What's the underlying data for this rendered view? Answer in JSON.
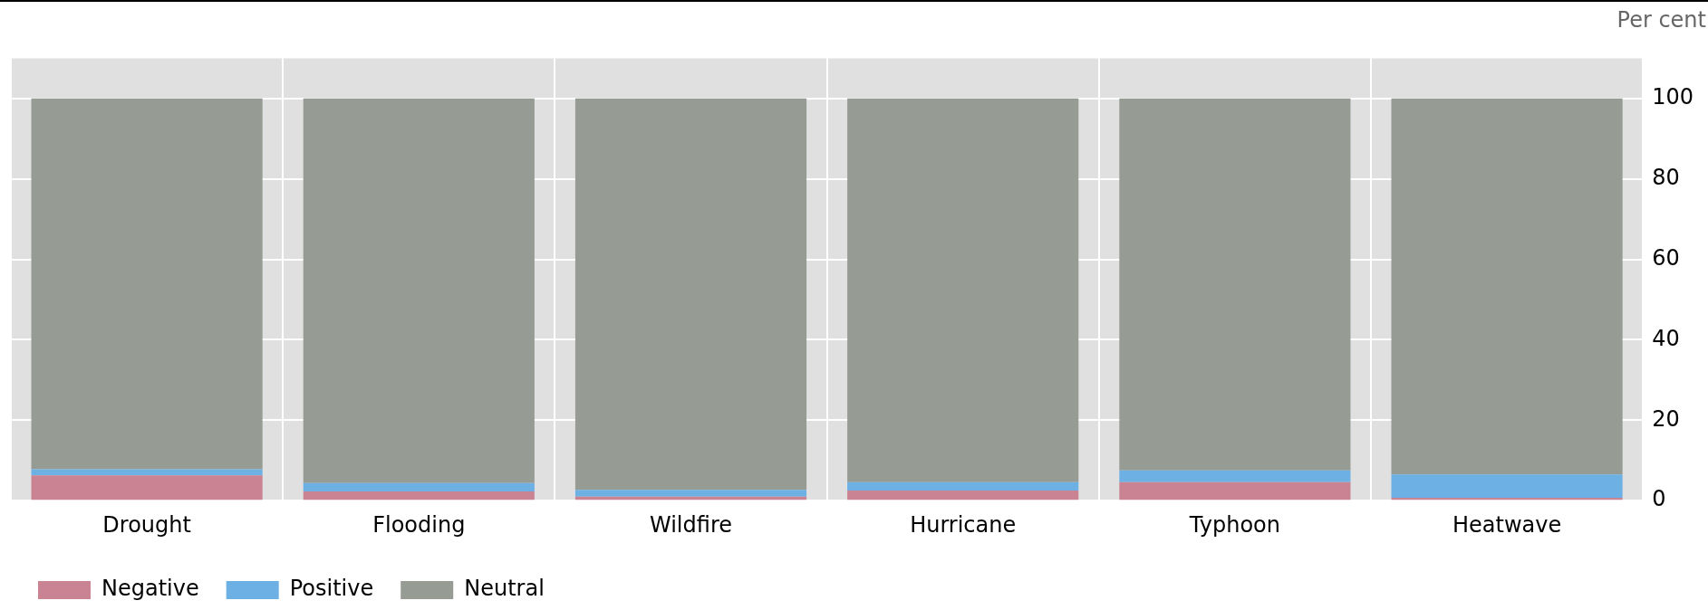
{
  "chart_data": {
    "type": "bar",
    "stacked": true,
    "ylabel": "Per cent",
    "categories": [
      "Drought",
      "Flooding",
      "Wildfire",
      "Hurricane",
      "Typhoon",
      "Heatwave"
    ],
    "series": [
      {
        "name": "Negative",
        "color": "#c98393",
        "values": [
          6.3,
          2.3,
          1.0,
          2.5,
          4.6,
          0.7
        ]
      },
      {
        "name": "Positive",
        "color": "#6cb0e4",
        "values": [
          1.5,
          2.1,
          1.7,
          2.1,
          2.9,
          5.8
        ]
      },
      {
        "name": "Neutral",
        "color": "#969c94",
        "values": [
          92.2,
          95.6,
          97.3,
          95.4,
          92.5,
          93.5
        ]
      }
    ],
    "ylim": [
      0,
      110
    ],
    "yticks": [
      0,
      20,
      40,
      60,
      80,
      100
    ],
    "grid": true,
    "legend": "bottom left"
  }
}
